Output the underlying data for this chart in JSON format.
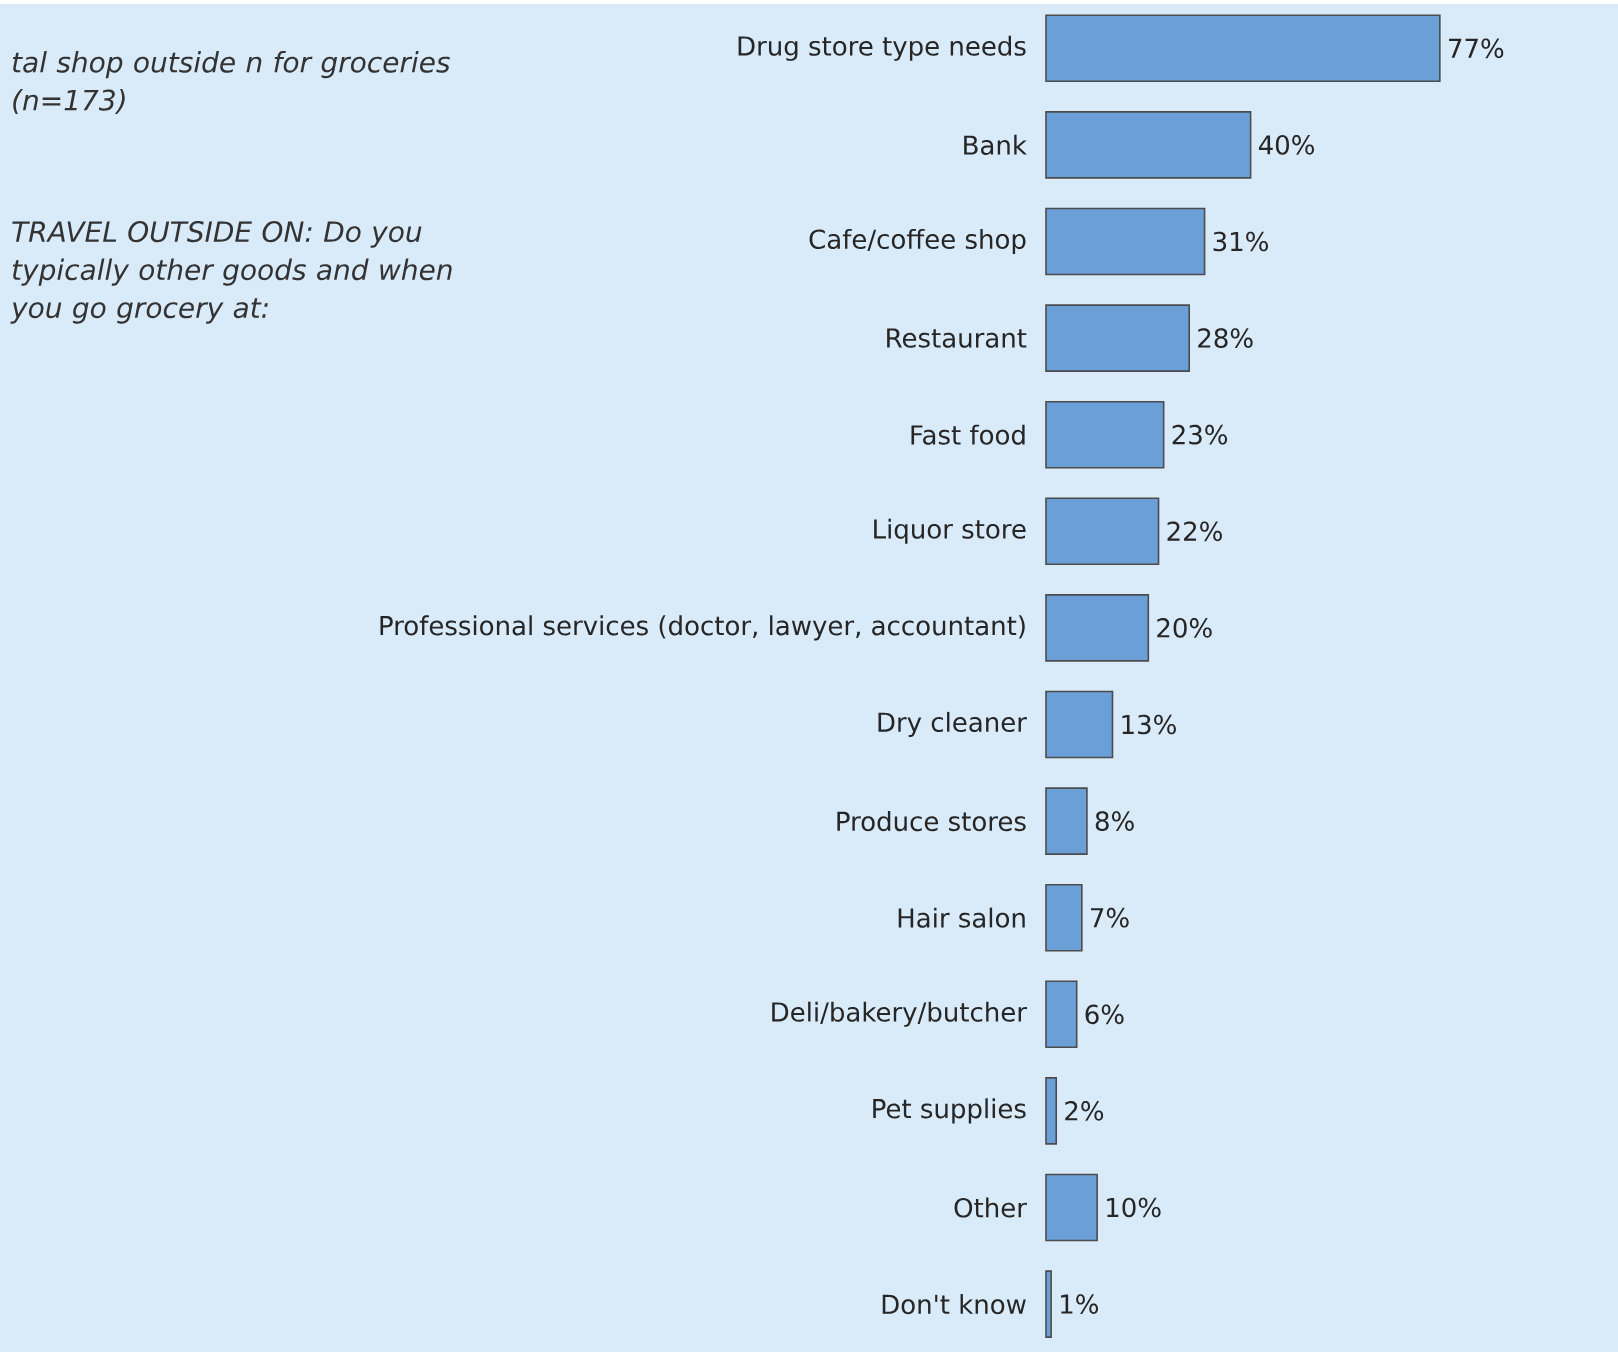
{
  "chart_data": {
    "type": "bar",
    "orientation": "horizontal",
    "categories": [
      "Drug store type needs",
      "Bank",
      "Cafe/coffee shop",
      "Restaurant",
      "Fast food",
      "Liquor store",
      "Professional services (doctor, lawyer, accountant)",
      "Dry cleaner",
      "Produce stores",
      "Hair salon",
      "Deli/bakery/butcher",
      "Pet supplies",
      "Other",
      "Don't know"
    ],
    "values": [
      77,
      40,
      31,
      28,
      23,
      22,
      20,
      13,
      8,
      7,
      6,
      2,
      10,
      1
    ],
    "value_labels": [
      "77%",
      "40%",
      "31%",
      "28%",
      "23%",
      "22%",
      "20%",
      "13%",
      "8%",
      "7%",
      "6%",
      "2%",
      "10%",
      "1%"
    ],
    "color": "#6a9fd8",
    "annotations": [
      "tal shop outside n for groceries (n=173)",
      "TRAVEL OUTSIDE ON: Do you typically other goods and when you go grocery at:"
    ]
  }
}
